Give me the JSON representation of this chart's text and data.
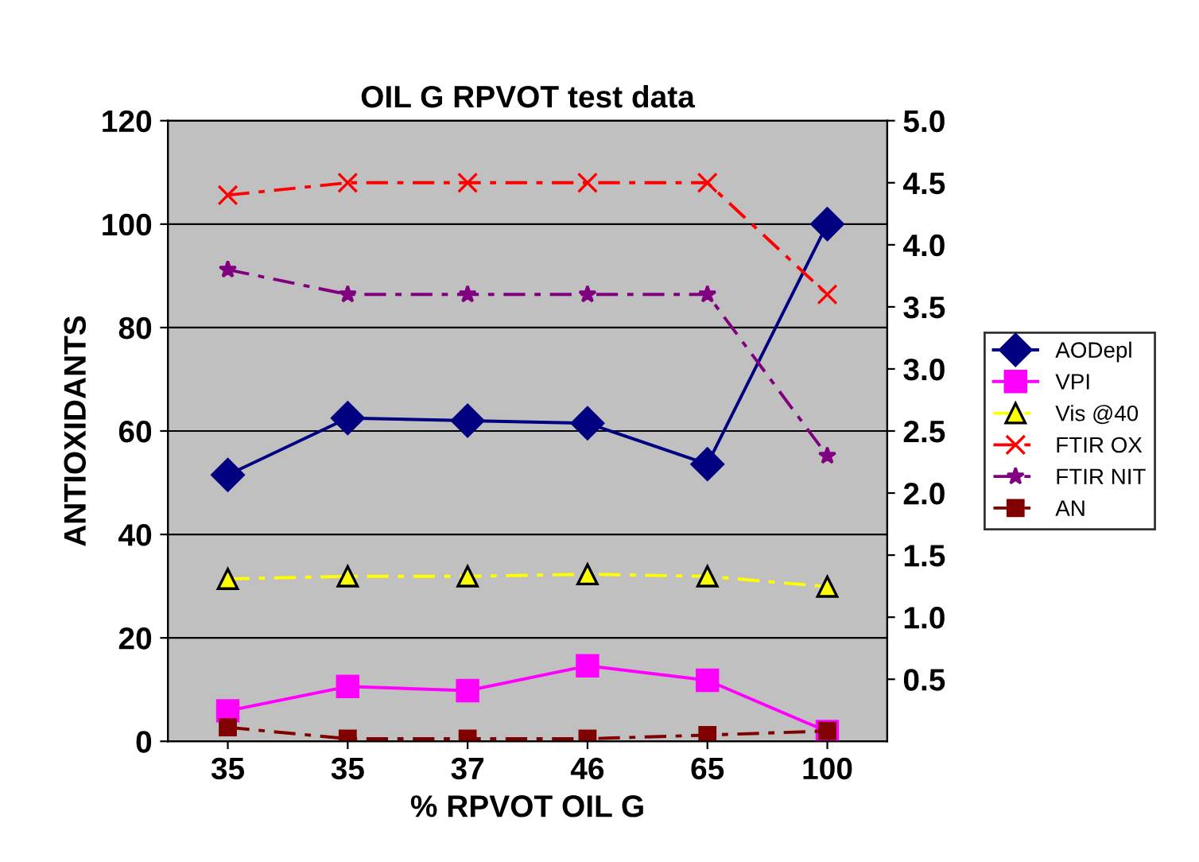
{
  "chart_data": {
    "type": "line",
    "title": "OIL G RPVOT test data",
    "xlabel": "% RPVOT OIL G",
    "ylabel": "ANTIOXIDANTS",
    "categories": [
      "35",
      "35",
      "37",
      "46",
      "65",
      "100"
    ],
    "series": [
      {
        "name": "AODepl",
        "color": "#000080",
        "marker": "diamond",
        "line_style": "solid",
        "values": [
          51.5,
          62.5,
          62,
          61.5,
          53.6,
          100
        ]
      },
      {
        "name": "VPI",
        "color": "#ff00ff",
        "marker": "square",
        "line_style": "solid",
        "values": [
          5.9,
          10.6,
          9.8,
          14.6,
          11.8,
          1.9
        ]
      },
      {
        "name": "Vis @40",
        "color": "#ffff00",
        "marker": "triangle",
        "line_style": "dashed",
        "values": [
          31.4,
          31.9,
          31.9,
          32.3,
          31.9,
          29.9
        ]
      },
      {
        "name": "FTIR OX",
        "color": "#ff0000",
        "marker": "cross",
        "line_style": "dashed",
        "axis": "y2",
        "values": [
          4.4,
          4.5,
          4.5,
          4.5,
          4.5,
          3.6
        ]
      },
      {
        "name": "FTIR NIT",
        "color": "#800080",
        "marker": "star",
        "line_style": "dashed",
        "axis": "y2",
        "values": [
          3.8,
          3.6,
          3.6,
          3.6,
          3.6,
          2.3
        ]
      },
      {
        "name": "AN",
        "color": "#800000",
        "marker": "square",
        "line_style": "dashed",
        "values": [
          2.7,
          0.5,
          0.5,
          0.5,
          1.2,
          2
        ]
      }
    ],
    "ylim": [
      0,
      120
    ],
    "yticks": [
      0,
      20,
      40,
      60,
      80,
      100,
      120
    ],
    "y2lim": [
      0,
      5
    ],
    "y2ticks": [
      {
        "value": 0.5,
        "label": "0.5"
      },
      {
        "value": 1,
        "label": "1.0"
      },
      {
        "value": 1.5,
        "label": "1.5"
      },
      {
        "value": 2,
        "label": "2.0"
      },
      {
        "value": 2.5,
        "label": "2.5"
      },
      {
        "value": 3,
        "label": "3.0"
      },
      {
        "value": 3.5,
        "label": "3.5"
      },
      {
        "value": 4,
        "label": "4.0"
      },
      {
        "value": 4.5,
        "label": "4.5"
      },
      {
        "value": 5,
        "label": "5.0"
      }
    ],
    "grid": "y",
    "legend": "right"
  }
}
